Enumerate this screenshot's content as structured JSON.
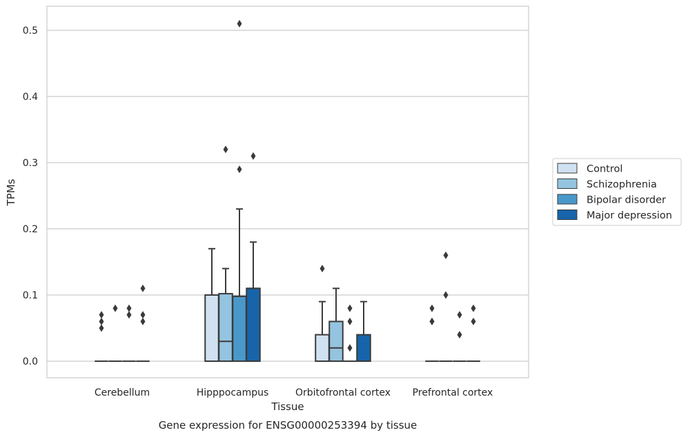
{
  "chart_data": {
    "type": "box",
    "title": "Gene expression for ENSG00000253394 by tissue",
    "xlabel": "Tissue",
    "ylabel": "TPMs",
    "ylim": [
      -0.025,
      0.537
    ],
    "yticks": [
      "0.0",
      "0.1",
      "0.2",
      "0.3",
      "0.4",
      "0.5"
    ],
    "ytick_values": [
      0.0,
      0.1,
      0.2,
      0.3,
      0.4,
      0.5
    ],
    "grid": true,
    "legend_position": "right",
    "categories": [
      "Cerebellum",
      "Hipppocampus",
      "Orbitofrontal cortex",
      "Prefrontal cortex"
    ],
    "series": [
      {
        "name": "Control",
        "color": "#d0e1f2",
        "boxes": [
          {
            "q1": 0,
            "median": 0,
            "q3": 0,
            "whisker_low": 0,
            "whisker_high": 0,
            "outliers": [
              0.05,
              0.06,
              0.07
            ]
          },
          {
            "q1": 0,
            "median": 0.1,
            "q3": 0.1,
            "whisker_low": 0,
            "whisker_high": 0.17,
            "outliers": []
          },
          {
            "q1": 0,
            "median": 0,
            "q3": 0.04,
            "whisker_low": 0,
            "whisker_high": 0.09,
            "outliers": [
              0.14
            ]
          },
          {
            "q1": 0,
            "median": 0,
            "q3": 0,
            "whisker_low": 0,
            "whisker_high": 0,
            "outliers": [
              0.06,
              0.06,
              0.08
            ]
          }
        ]
      },
      {
        "name": "Schizophrenia",
        "color": "#94c4df",
        "boxes": [
          {
            "q1": 0,
            "median": 0,
            "q3": 0,
            "whisker_low": 0,
            "whisker_high": 0,
            "outliers": [
              0.08
            ]
          },
          {
            "q1": 0,
            "median": 0.03,
            "q3": 0.102,
            "whisker_low": 0,
            "whisker_high": 0.14,
            "outliers": [
              0.32
            ]
          },
          {
            "q1": 0,
            "median": 0.02,
            "q3": 0.06,
            "whisker_low": 0,
            "whisker_high": 0.11,
            "outliers": []
          },
          {
            "q1": 0,
            "median": 0,
            "q3": 0,
            "whisker_low": 0,
            "whisker_high": 0,
            "outliers": [
              0.1,
              0.16
            ]
          }
        ]
      },
      {
        "name": "Bipolar disorder",
        "color": "#4a98c9",
        "boxes": [
          {
            "q1": 0,
            "median": 0,
            "q3": 0,
            "whisker_low": 0,
            "whisker_high": 0,
            "outliers": [
              0.07,
              0.08
            ]
          },
          {
            "q1": 0,
            "median": 0.098,
            "q3": 0.098,
            "whisker_low": 0,
            "whisker_high": 0.23,
            "outliers": [
              0.29,
              0.51
            ]
          },
          {
            "q1": 0,
            "median": 0,
            "q3": 0,
            "whisker_low": 0,
            "whisker_high": 0,
            "outliers": [
              0.02,
              0.06,
              0.08
            ]
          },
          {
            "q1": 0,
            "median": 0,
            "q3": 0,
            "whisker_low": 0,
            "whisker_high": 0,
            "outliers": [
              0.04,
              0.07
            ]
          }
        ]
      },
      {
        "name": "Major depression",
        "color": "#1764ab",
        "boxes": [
          {
            "q1": 0,
            "median": 0,
            "q3": 0,
            "whisker_low": 0,
            "whisker_high": 0,
            "outliers": [
              0.06,
              0.07,
              0.11
            ]
          },
          {
            "q1": 0,
            "median": 0.11,
            "q3": 0.11,
            "whisker_low": 0,
            "whisker_high": 0.18,
            "outliers": [
              0.31
            ]
          },
          {
            "q1": 0,
            "median": 0,
            "q3": 0.04,
            "whisker_low": 0,
            "whisker_high": 0.09,
            "outliers": []
          },
          {
            "q1": 0,
            "median": 0,
            "q3": 0,
            "whisker_low": 0,
            "whisker_high": 0,
            "outliers": [
              0.06,
              0.08
            ]
          }
        ]
      }
    ]
  }
}
